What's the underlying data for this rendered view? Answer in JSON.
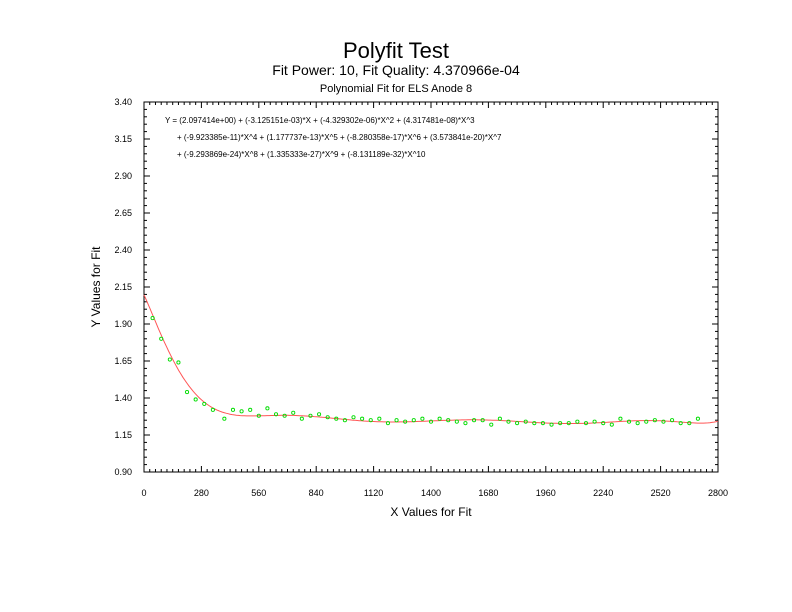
{
  "chart_data": {
    "type": "scatter",
    "title": "Polyfit Test",
    "subtitle": "Fit Power: 10, Fit Quality: 4.370966e-04",
    "subtitle2": "Polynomial Fit for ELS Anode 8",
    "xlabel": "X Values for Fit",
    "ylabel": "Y Values for Fit",
    "xlim": [
      0,
      2800
    ],
    "ylim": [
      0.9,
      3.4
    ],
    "x_ticks": [
      "0",
      "280",
      "560",
      "840",
      "1120",
      "1400",
      "1680",
      "1960",
      "2240",
      "2520",
      "2800"
    ],
    "y_ticks": [
      "0.90",
      "1.15",
      "1.40",
      "1.65",
      "1.90",
      "2.15",
      "2.40",
      "2.65",
      "2.90",
      "3.15",
      "3.40"
    ],
    "equation_lines": [
      "Y = (2.097414e+00) + (-3.125151e-03)*X + (-4.329302e-06)*X^2 + (4.317481e-08)*X^3",
      "+ (-9.923385e-11)*X^4 + (1.177737e-13)*X^5 + (-8.280358e-17)*X^6 + (3.573841e-20)*X^7",
      "+ (-9.293869e-24)*X^8 + (1.335333e-27)*X^9 + (-8.131189e-32)*X^10"
    ],
    "coefficients": [
      2.097414,
      -0.003125151,
      -4.329302e-06,
      4.317481e-08,
      -9.923385e-11,
      1.177737e-13,
      -8.280358e-17,
      3.573841e-20,
      -9.293869e-24,
      1.335333e-27,
      -8.131189e-32
    ],
    "series": [
      {
        "type": "scatter",
        "color": "#00dd00",
        "x": [
          42,
          84,
          126,
          168,
          210,
          252,
          294,
          336,
          392,
          434,
          476,
          518,
          560,
          602,
          644,
          686,
          728,
          770,
          812,
          854,
          896,
          938,
          980,
          1022,
          1064,
          1106,
          1148,
          1190,
          1232,
          1274,
          1316,
          1358,
          1400,
          1442,
          1484,
          1526,
          1568,
          1610,
          1652,
          1694,
          1736,
          1778,
          1820,
          1862,
          1904,
          1946,
          1988,
          2030,
          2072,
          2114,
          2156,
          2198,
          2240,
          2282,
          2324,
          2366,
          2408,
          2450,
          2492,
          2534,
          2576,
          2618,
          2660,
          2702
        ],
        "y": [
          1.94,
          1.8,
          1.66,
          1.64,
          1.44,
          1.39,
          1.36,
          1.32,
          1.26,
          1.32,
          1.31,
          1.32,
          1.28,
          1.33,
          1.29,
          1.28,
          1.3,
          1.26,
          1.28,
          1.29,
          1.27,
          1.26,
          1.25,
          1.27,
          1.26,
          1.25,
          1.26,
          1.23,
          1.25,
          1.24,
          1.25,
          1.26,
          1.24,
          1.26,
          1.25,
          1.24,
          1.23,
          1.25,
          1.25,
          1.22,
          1.26,
          1.24,
          1.23,
          1.24,
          1.23,
          1.23,
          1.22,
          1.23,
          1.23,
          1.24,
          1.23,
          1.24,
          1.23,
          1.22,
          1.26,
          1.24,
          1.23,
          1.24,
          1.25,
          1.24,
          1.25,
          1.23,
          1.23,
          1.26
        ]
      },
      {
        "type": "line",
        "color": "#ff5555"
      }
    ],
    "grid": false,
    "legend": "none"
  }
}
